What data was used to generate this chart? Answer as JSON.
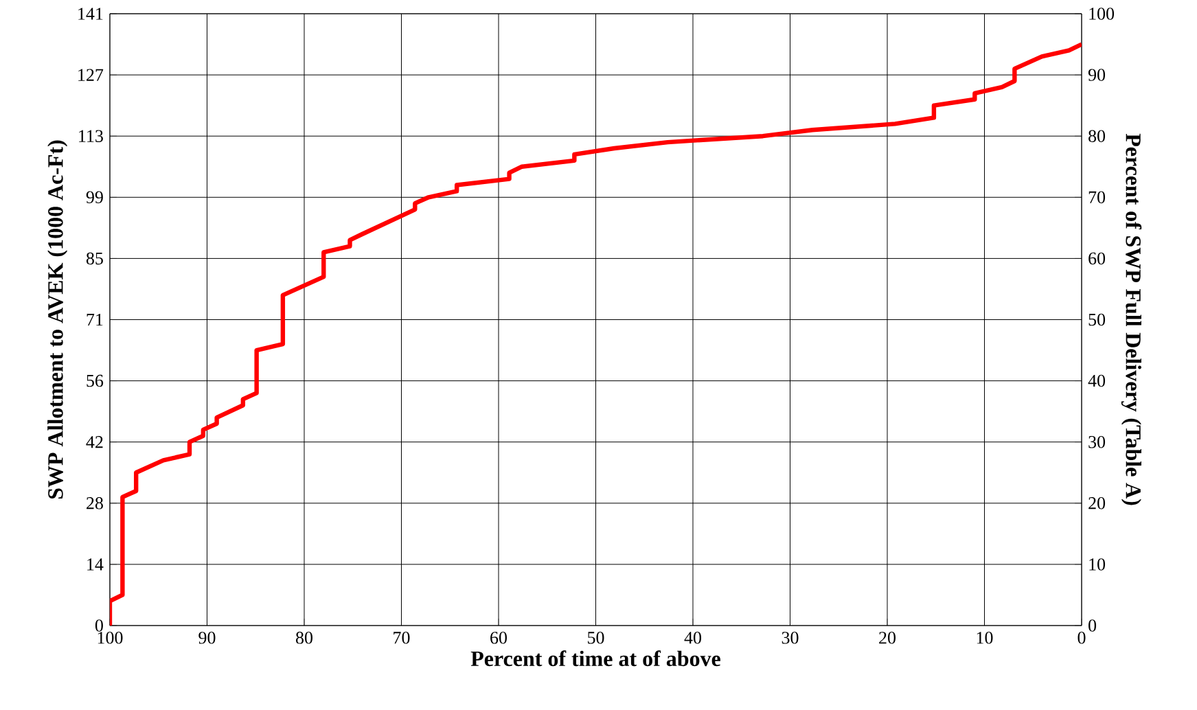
{
  "chart_data": {
    "type": "line",
    "xlabel": "Percent of time at of above",
    "ylabel": "SWP Allotment to AVEK (1000 Ac-Ft)",
    "y2label": "Percent of SWP Full Delivery (Table A)",
    "xlim": [
      100,
      0
    ],
    "xticks": [
      100,
      90,
      80,
      70,
      60,
      50,
      40,
      30,
      20,
      10,
      0
    ],
    "ylim": [
      0,
      141
    ],
    "yticks": [
      0,
      {
        "value": 14.1,
        "label": "14"
      },
      {
        "value": 28.2,
        "label": "28"
      },
      {
        "value": 42.3,
        "label": "42"
      },
      {
        "value": 56.4,
        "label": "56"
      },
      {
        "value": 70.5,
        "label": "71"
      },
      {
        "value": 84.6,
        "label": "85"
      },
      {
        "value": 98.7,
        "label": "99"
      },
      {
        "value": 112.8,
        "label": "113"
      },
      {
        "value": 126.9,
        "label": "127"
      },
      141
    ],
    "y2lim": [
      0,
      100
    ],
    "y2ticks": [
      0,
      10,
      20,
      30,
      40,
      50,
      60,
      70,
      80,
      90,
      100
    ],
    "grid": true,
    "x": [
      100,
      100,
      98.7,
      98.7,
      97.3,
      97.3,
      94.5,
      91.8,
      91.8,
      90.4,
      90.4,
      89,
      89,
      86.3,
      86.3,
      84.9,
      84.9,
      82.2,
      82.2,
      78,
      78,
      75.3,
      75.3,
      74,
      68.6,
      68.6,
      67.2,
      64.3,
      64.3,
      58.9,
      58.9,
      57.6,
      52.2,
      52.2,
      48.1,
      42.6,
      32.8,
      27.7,
      19.2,
      15.2,
      15.2,
      11,
      11,
      8.2,
      6.9,
      6.9,
      4.1,
      1.3,
      0
    ],
    "series": [
      {
        "color": "#ff0000",
        "axis": "y2",
        "values": [
          0,
          4,
          5,
          21,
          22,
          25,
          27,
          28,
          30,
          31,
          32,
          33,
          34,
          36,
          37,
          38,
          45,
          46,
          54,
          57,
          61,
          62,
          63,
          64,
          68,
          69,
          70,
          71,
          72,
          73,
          74,
          75,
          76,
          77,
          78,
          79,
          80,
          81,
          82,
          83,
          85,
          86,
          87,
          88,
          89,
          91,
          93,
          94,
          95
        ]
      }
    ]
  }
}
